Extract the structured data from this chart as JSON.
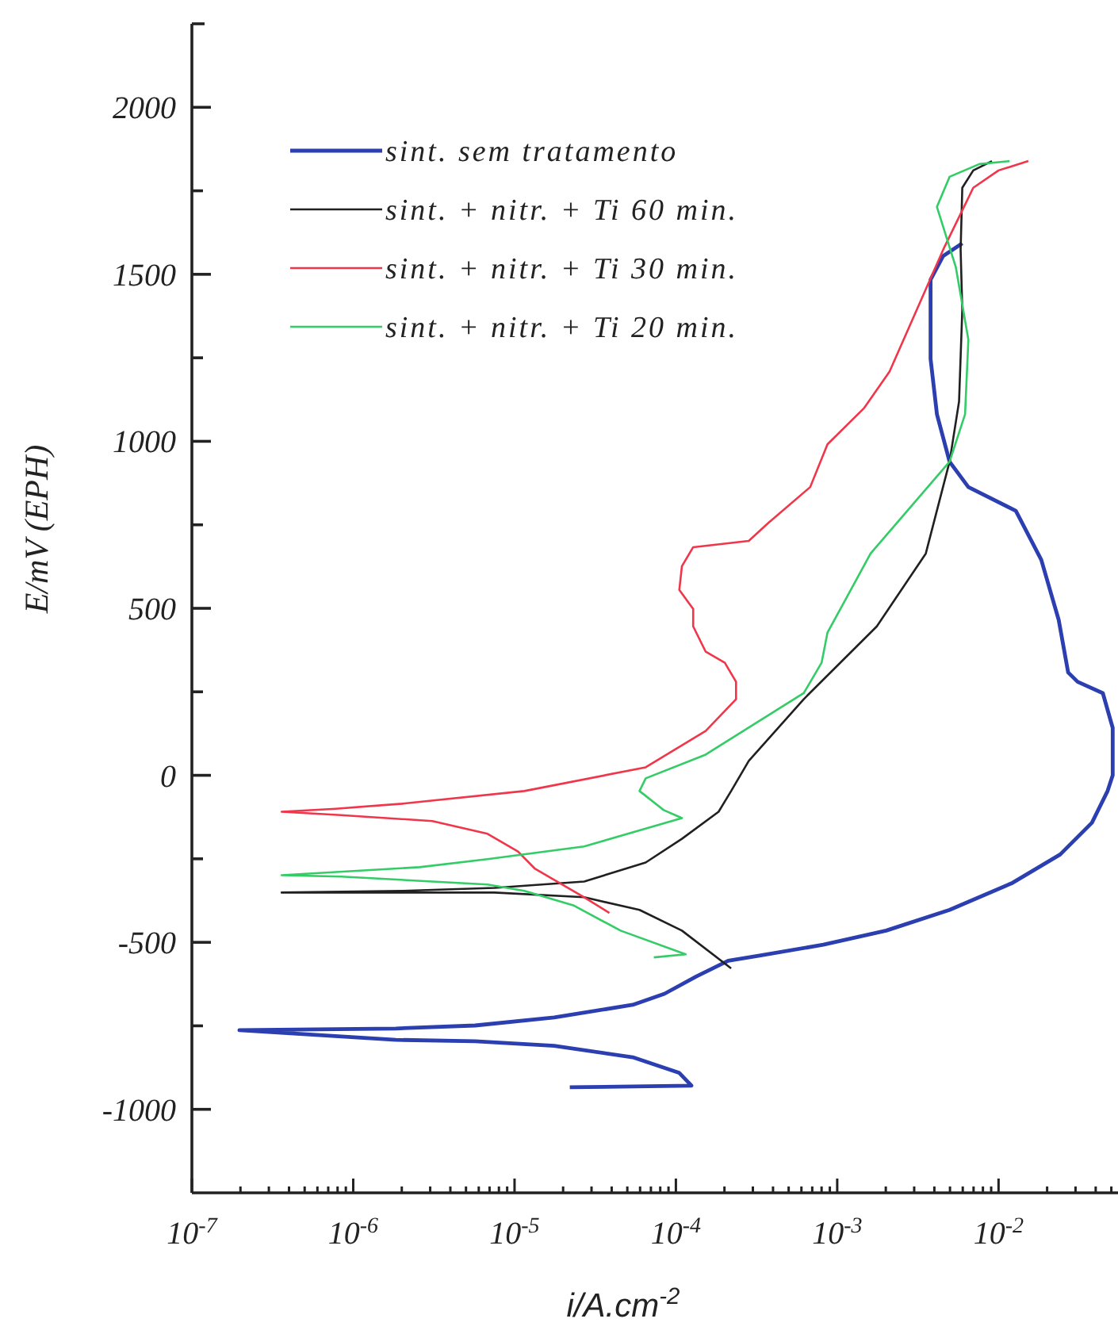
{
  "chart_data": {
    "type": "line",
    "xlabel": "i/A.cm$^{-2}$",
    "ylabel": "E/mV (EPH)",
    "log": "x",
    "xlim": [
      1e-07,
      0.055
    ],
    "ylim": [
      -1250,
      2250
    ],
    "xticks": [
      {
        "value": 1e-07,
        "label": "10$^{-7}$"
      },
      {
        "value": 2e-07,
        "label": null
      },
      {
        "value": 3e-07,
        "label": null
      },
      {
        "value": 4e-07,
        "label": null
      },
      {
        "value": 5e-07,
        "label": null
      },
      {
        "value": 6e-07,
        "label": null
      },
      {
        "value": 7e-07,
        "label": null
      },
      {
        "value": 8e-07,
        "label": null
      },
      {
        "value": 9e-07,
        "label": null
      },
      {
        "value": 1e-06,
        "label": "10$^{-6}$"
      },
      {
        "value": 2e-06,
        "label": null
      },
      {
        "value": 3e-06,
        "label": null
      },
      {
        "value": 4e-06,
        "label": null
      },
      {
        "value": 5e-06,
        "label": null
      },
      {
        "value": 6e-06,
        "label": null
      },
      {
        "value": 7e-06,
        "label": null
      },
      {
        "value": 8e-06,
        "label": null
      },
      {
        "value": 9e-06,
        "label": null
      },
      {
        "value": 1e-05,
        "label": "10$^{-5}$"
      },
      {
        "value": 2e-05,
        "label": null
      },
      {
        "value": 3e-05,
        "label": null
      },
      {
        "value": 4e-05,
        "label": null
      },
      {
        "value": 5e-05,
        "label": null
      },
      {
        "value": 6e-05,
        "label": null
      },
      {
        "value": 7e-05,
        "label": null
      },
      {
        "value": 8e-05,
        "label": null
      },
      {
        "value": 9e-05,
        "label": null
      },
      {
        "value": 0.0001,
        "label": "10$^{-4}$"
      },
      {
        "value": 0.0002,
        "label": null
      },
      {
        "value": 0.0003,
        "label": null
      },
      {
        "value": 0.0004,
        "label": null
      },
      {
        "value": 0.0005,
        "label": null
      },
      {
        "value": 0.0006,
        "label": null
      },
      {
        "value": 0.0007,
        "label": null
      },
      {
        "value": 0.0008,
        "label": null
      },
      {
        "value": 0.0009,
        "label": null
      },
      {
        "value": 0.001,
        "label": "10$^{-3}$"
      },
      {
        "value": 0.002,
        "label": null
      },
      {
        "value": 0.003,
        "label": null
      },
      {
        "value": 0.004,
        "label": null
      },
      {
        "value": 0.005,
        "label": null
      },
      {
        "value": 0.006,
        "label": null
      },
      {
        "value": 0.007,
        "label": null
      },
      {
        "value": 0.008,
        "label": null
      },
      {
        "value": 0.009,
        "label": null
      },
      {
        "value": 0.01,
        "label": "10$^{-2}$"
      },
      {
        "value": 0.02,
        "label": null
      },
      {
        "value": 0.03,
        "label": null
      },
      {
        "value": 0.04,
        "label": null
      },
      {
        "value": 0.05,
        "label": null
      }
    ],
    "yticks": [
      -1000,
      {
        "value": -750,
        "label": null
      },
      -500,
      {
        "value": -250,
        "label": null
      },
      0,
      {
        "value": 250,
        "label": null
      },
      500,
      {
        "value": 750,
        "label": null
      },
      1000,
      {
        "value": 1250,
        "label": null
      },
      1500,
      {
        "value": 1750,
        "label": null
      },
      2000
    ],
    "grid": false,
    "legend": "top left",
    "marker": "none",
    "line_style": "solid",
    "series": [
      {
        "name": "sint. sem tratamento",
        "color": "#2b3fb0",
        "x": [
          2.2e-05,
          0.000125,
          0.000105,
          5.4e-05,
          1.76e-05,
          5.7e-06,
          1.84e-06,
          1.97e-07,
          1.84e-06,
          5.7e-06,
          1.76e-05,
          5.4e-05,
          8.5e-05,
          0.000134,
          0.000211,
          0.00033,
          0.00082,
          0.00201,
          0.00497,
          0.0122,
          0.0241,
          0.0379,
          0.0474,
          0.051,
          0.051,
          0.0443,
          0.0309,
          0.027,
          0.0236,
          0.0184,
          0.0128,
          0.0065,
          0.00497,
          0.00415,
          0.00379,
          0.00379,
          0.00454,
          0.00596
        ],
        "values": [
          -934,
          -929,
          -891,
          -844,
          -810,
          -796,
          -792,
          -763,
          -758,
          -749,
          -725,
          -687,
          -654,
          -602,
          -555,
          -540,
          -507,
          -465,
          -403,
          -322,
          -237,
          -142,
          -47,
          0,
          142,
          246,
          280,
          308,
          465,
          645,
          792,
          863,
          939,
          1081,
          1247,
          1484,
          1555,
          1593
        ]
      },
      {
        "name": "sint. + nitr. + Ti 60 min.",
        "color": "#202020",
        "x": [
          0.00022,
          0.000109,
          5.95e-05,
          2.7e-05,
          7.5e-06,
          3.6e-07,
          2.01e-06,
          7.5e-06,
          2.7e-05,
          6.5e-05,
          0.000109,
          0.000184,
          0.00022,
          0.000283,
          0.00062,
          0.00176,
          0.00354,
          0.00497,
          0.00569,
          0.00596,
          0.00582,
          0.00596,
          0.00697,
          0.0091
        ],
        "values": [
          -578,
          -465,
          -403,
          -365,
          -351,
          -351,
          -346,
          -337,
          -318,
          -261,
          -190,
          -109,
          -47,
          43,
          228,
          446,
          664,
          939,
          1119,
          1394,
          1574,
          1759,
          1811,
          1839
        ]
      },
      {
        "name": "sint. + nitr. + Ti 30 min.",
        "color": "#f0364a",
        "x": [
          3.87e-05,
          2.7e-05,
          1.34e-05,
          1.05e-05,
          6.8e-06,
          3.09e-06,
          8.4e-07,
          3.6e-07,
          7.8e-07,
          2.01e-06,
          1.15e-05,
          6.5e-05,
          0.000153,
          0.000236,
          0.000236,
          0.000201,
          0.000153,
          0.000128,
          0.000128,
          0.000105,
          0.000109,
          0.000128,
          0.000283,
          0.000371,
          0.00068,
          0.00087,
          0.00147,
          0.00211,
          0.00324,
          0.00454,
          0.00697,
          0.01,
          0.0153
        ],
        "values": [
          -412,
          -365,
          -280,
          -228,
          -175,
          -137,
          -119,
          -109,
          -100,
          -85,
          -47,
          24,
          133,
          228,
          280,
          337,
          370,
          446,
          498,
          555,
          626,
          683,
          702,
          754,
          863,
          991,
          1100,
          1209,
          1413,
          1574,
          1759,
          1811,
          1839
        ]
      },
      {
        "name": "sint. + nitr. + Ti 20 min.",
        "color": "#33cc66",
        "x": [
          7.3e-05,
          0.000115,
          4.54e-05,
          2.31e-05,
          1.15e-05,
          6.8e-06,
          8.4e-07,
          3.6e-07,
          2.58e-06,
          6.8e-06,
          2.7e-05,
          0.000109,
          8.4e-05,
          5.95e-05,
          6.5e-05,
          0.000153,
          0.00062,
          0.0008,
          0.00087,
          0.00161,
          0.00497,
          0.0062,
          0.0065,
          0.00543,
          0.00415,
          0.00497,
          0.0076,
          0.0117
        ],
        "values": [
          -545,
          -536,
          -465,
          -389,
          -346,
          -327,
          -303,
          -299,
          -275,
          -251,
          -213,
          -128,
          -104,
          -47,
          -9,
          62,
          246,
          337,
          427,
          664,
          939,
          1081,
          1304,
          1522,
          1702,
          1792,
          1830,
          1839
        ]
      }
    ]
  }
}
